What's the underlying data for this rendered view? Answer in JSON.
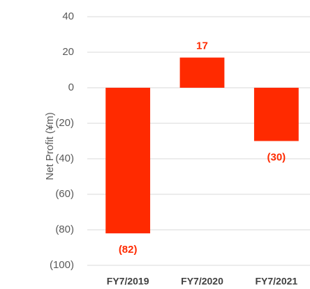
{
  "chart_data": {
    "type": "bar",
    "y_label": "Net Profit (¥m)",
    "categories": [
      "FY7/2019",
      "FY7/2020",
      "FY7/2021"
    ],
    "values": [
      -82,
      17,
      -30
    ],
    "value_labels": [
      "(82)",
      "17",
      "(30)"
    ],
    "color": "#ff2a00",
    "ylim": [
      -100,
      40
    ],
    "yticks": [
      40,
      20,
      0,
      {
        "value": -20,
        "label": "(20)"
      },
      {
        "value": -40,
        "label": "(40)"
      },
      {
        "value": -60,
        "label": "(60)"
      },
      {
        "value": -80,
        "label": "(80)"
      },
      {
        "value": -100,
        "label": "(100)"
      }
    ],
    "grid": true
  }
}
